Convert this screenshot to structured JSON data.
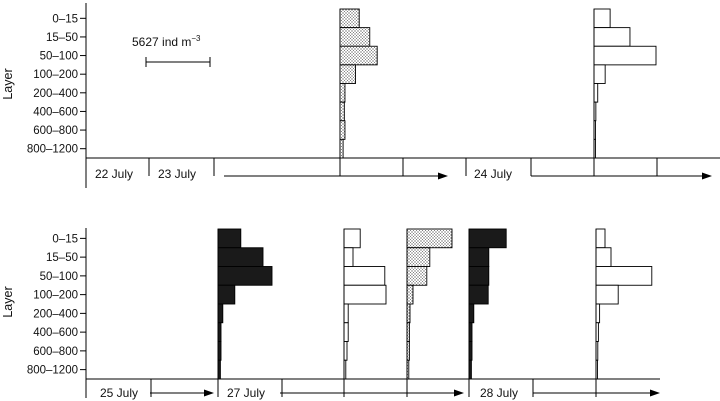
{
  "chart_data": [
    {
      "type": "bar",
      "orientation": "horizontal",
      "panel": "top",
      "ylabel": "Layer",
      "categories": [
        "0–15",
        "15–50",
        "50–100",
        "100–200",
        "200–400",
        "400–600",
        "600–800",
        "800–1200"
      ],
      "scale_bar": {
        "text": "5627 ind m",
        "superscript": "−3",
        "value": 5627
      },
      "dates": [
        "22 July",
        "23 July",
        "24 July"
      ],
      "series": [
        {
          "style": "dotted",
          "values": [
            0.31,
            0.48,
            0.6,
            0.25,
            0.08,
            0.07,
            0.08,
            0.05
          ]
        },
        {
          "style": "open",
          "values": [
            0.26,
            0.58,
            1.0,
            0.18,
            0.06,
            0.03,
            0.02,
            0.02
          ]
        }
      ]
    },
    {
      "type": "bar",
      "orientation": "horizontal",
      "panel": "bottom",
      "ylabel": "Layer",
      "categories": [
        "0–15",
        "15–50",
        "50–100",
        "100–200",
        "200–400",
        "400–600",
        "600–800",
        "800–1200"
      ],
      "dates": [
        "25 July",
        "27 July",
        "28 July"
      ],
      "series": [
        {
          "style": "black",
          "values": [
            0.38,
            0.75,
            0.9,
            0.28,
            0.08,
            0.05,
            0.05,
            0.04
          ]
        },
        {
          "style": "open",
          "values": [
            0.27,
            0.15,
            0.68,
            0.7,
            0.07,
            0.07,
            0.05,
            0.03
          ]
        },
        {
          "style": "dotted",
          "values": [
            0.75,
            0.38,
            0.33,
            0.1,
            0.05,
            0.04,
            0.04,
            0.03
          ]
        },
        {
          "style": "black",
          "values": [
            0.62,
            0.33,
            0.33,
            0.32,
            0.08,
            0.05,
            0.05,
            0.04
          ]
        },
        {
          "style": "open",
          "values": [
            0.15,
            0.25,
            0.93,
            0.37,
            0.06,
            0.04,
            0.03,
            0.02
          ]
        }
      ]
    }
  ]
}
